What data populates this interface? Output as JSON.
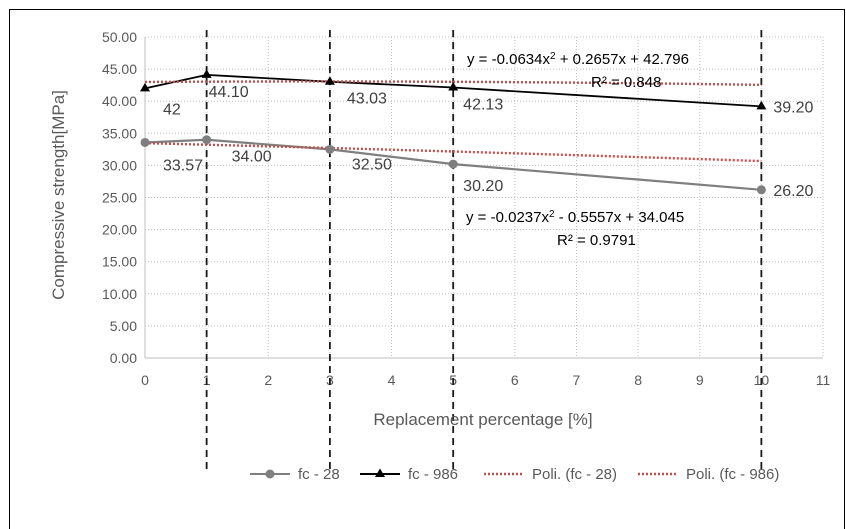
{
  "chart_data": {
    "type": "line",
    "xlabel": "Replacement percentage [%]",
    "ylabel": "Compressive strength[MPa]",
    "xlim": [
      0,
      11
    ],
    "ylim": [
      0,
      50
    ],
    "x_ticks": [
      "0",
      "1",
      "2",
      "3",
      "4",
      "5",
      "6",
      "7",
      "8",
      "9",
      "10",
      "11"
    ],
    "y_ticks": [
      "0.00",
      "5.00",
      "10.00",
      "15.00",
      "20.00",
      "25.00",
      "30.00",
      "35.00",
      "40.00",
      "45.00",
      "50.00"
    ],
    "grid": "dotted",
    "vertical_dashed_at": [
      1,
      3,
      5,
      10
    ],
    "x": [
      0,
      1,
      3,
      5,
      10
    ],
    "series": [
      {
        "name": "fc - 28",
        "marker": "circle",
        "color": "#7f7f7f",
        "values": [
          33.57,
          34.0,
          32.5,
          30.2,
          26.2
        ],
        "labels": [
          "33.57",
          "34.00",
          "32.50",
          "30.20",
          "26.20"
        ]
      },
      {
        "name": "fc - 986",
        "marker": "triangle",
        "color": "#000000",
        "values": [
          42,
          44.1,
          43.03,
          42.13,
          39.2
        ],
        "labels": [
          "42",
          "44.10",
          "43.03",
          "42.13",
          "39.20"
        ]
      }
    ],
    "trendlines": [
      {
        "name": "Poli. (fc - 28)",
        "type": "polynomial",
        "coefficients": [
          -0.0237,
          -0.5557,
          34.045
        ],
        "color": "#c0504d",
        "equation_prefix": "y = -0.0237x",
        "equation_suffix": " - 0.5557x + 34.045",
        "r2_label": "R² = 0.9791"
      },
      {
        "name": "Poli. (fc - 986)",
        "type": "polynomial",
        "coefficients": [
          -0.0634,
          0.2657,
          42.796
        ],
        "color": "#c0504d",
        "equation_prefix": "y = -0.0634x",
        "equation_suffix": " + 0.2657x + 42.796",
        "r2_label": "R² = 0.848"
      }
    ],
    "legend_position": "bottom"
  }
}
